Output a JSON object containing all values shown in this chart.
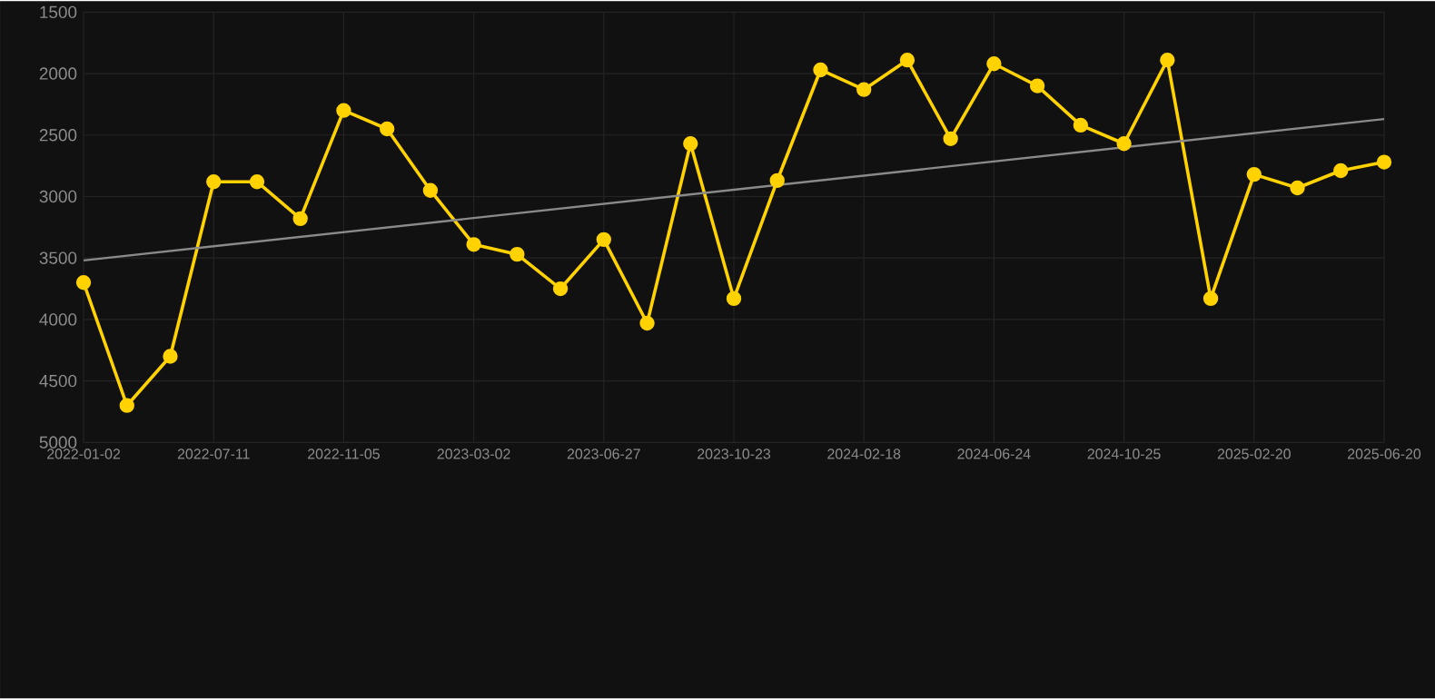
{
  "chart_data": {
    "type": "line",
    "categories": [
      "2022-01-02",
      null,
      null,
      "2022-07-11",
      null,
      null,
      "2022-11-05",
      null,
      null,
      "2023-03-02",
      null,
      null,
      "2023-06-27",
      null,
      null,
      "2023-10-23",
      null,
      null,
      "2024-02-18",
      null,
      null,
      "2024-06-24",
      null,
      null,
      "2024-10-25",
      null,
      null,
      "2025-02-20",
      null,
      null,
      "2025-06-20"
    ],
    "series": [
      {
        "color": "#ffd200",
        "values": [
          3700,
          4700,
          4300,
          2880,
          2880,
          3180,
          2300,
          2450,
          2950,
          3390,
          3470,
          3750,
          3350,
          4030,
          2570,
          3830,
          2870,
          1970,
          2130,
          1890,
          2530,
          1920,
          2100,
          2420,
          2570,
          1890,
          3830,
          2820,
          2930,
          2790,
          2720
        ],
        "marker": "circle"
      },
      {
        "type": "line",
        "color": "#8a8a8a",
        "values": [
          3520,
          null,
          null,
          null,
          null,
          null,
          null,
          null,
          null,
          null,
          null,
          null,
          null,
          null,
          null,
          null,
          null,
          null,
          null,
          null,
          null,
          null,
          null,
          null,
          null,
          null,
          null,
          null,
          null,
          null,
          2370
        ],
        "marker": "none"
      }
    ],
    "ylim": [
      5000,
      1500
    ],
    "yticks": [
      1500,
      2000,
      2500,
      3000,
      3500,
      4000,
      4500,
      5000
    ],
    "grid": true,
    "line_style": "solid"
  }
}
